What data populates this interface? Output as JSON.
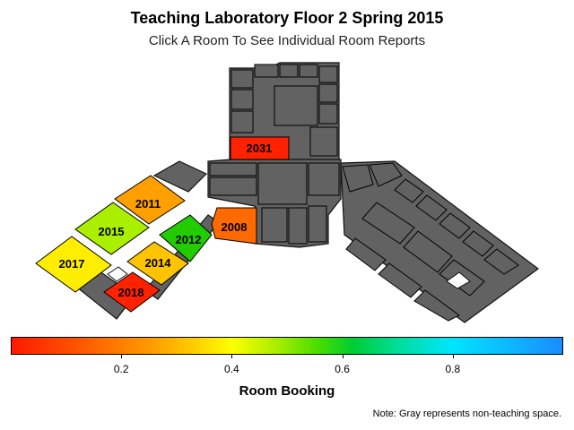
{
  "header": {
    "title": "Teaching Laboratory Floor 2 Spring 2015",
    "subtitle": "Click A Room To See Individual Room Reports"
  },
  "rooms": [
    {
      "id": "2031",
      "color": "#ff2200"
    },
    {
      "id": "2011",
      "color": "#ffa000"
    },
    {
      "id": "2015",
      "color": "#aaee00"
    },
    {
      "id": "2012",
      "color": "#22cc00"
    },
    {
      "id": "2008",
      "color": "#ff6a00"
    },
    {
      "id": "2017",
      "color": "#ffee00"
    },
    {
      "id": "2014",
      "color": "#ffc400"
    },
    {
      "id": "2018",
      "color": "#ff2200"
    }
  ],
  "non_teaching_color": "#626262",
  "scale": {
    "title": "Room Booking",
    "ticks": [
      "0.2",
      "0.4",
      "0.6",
      "0.8"
    ],
    "tick_values": [
      0.2,
      0.4,
      0.6,
      0.8
    ],
    "range": [
      0,
      1
    ]
  },
  "note": "Note: Gray represents non-teaching space."
}
